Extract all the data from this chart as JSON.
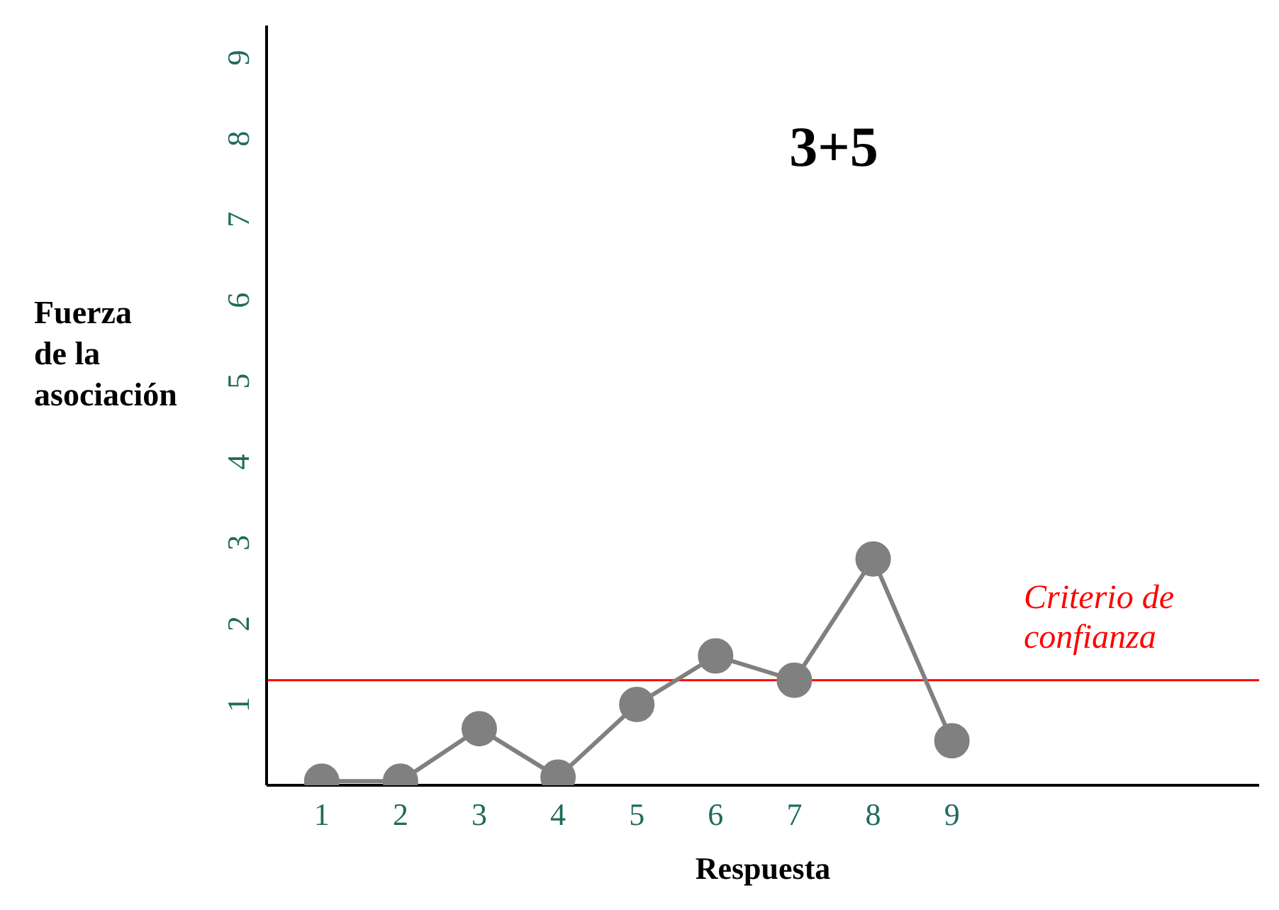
{
  "chart_data": {
    "type": "line",
    "title": "3+5",
    "xlabel": "Respuesta",
    "ylabel": "Fuerza de la asociación",
    "categories": [
      "1",
      "2",
      "3",
      "4",
      "5",
      "6",
      "7",
      "8",
      "9"
    ],
    "series": [
      {
        "color": "#808080",
        "values": [
          0.05,
          0.05,
          0.7,
          0.1,
          1.0,
          1.6,
          1.3,
          2.8,
          0.55
        ]
      }
    ],
    "ylim": [
      0,
      9.4
    ],
    "yticks": [
      1,
      2,
      3,
      4,
      5,
      6,
      7,
      8,
      9
    ],
    "marker": "circle",
    "line_style": "solid",
    "ref_lines": [
      {
        "axis": "y",
        "value": 1.3,
        "label": "Criterio de confianza",
        "color": "#ff0000"
      }
    ]
  }
}
